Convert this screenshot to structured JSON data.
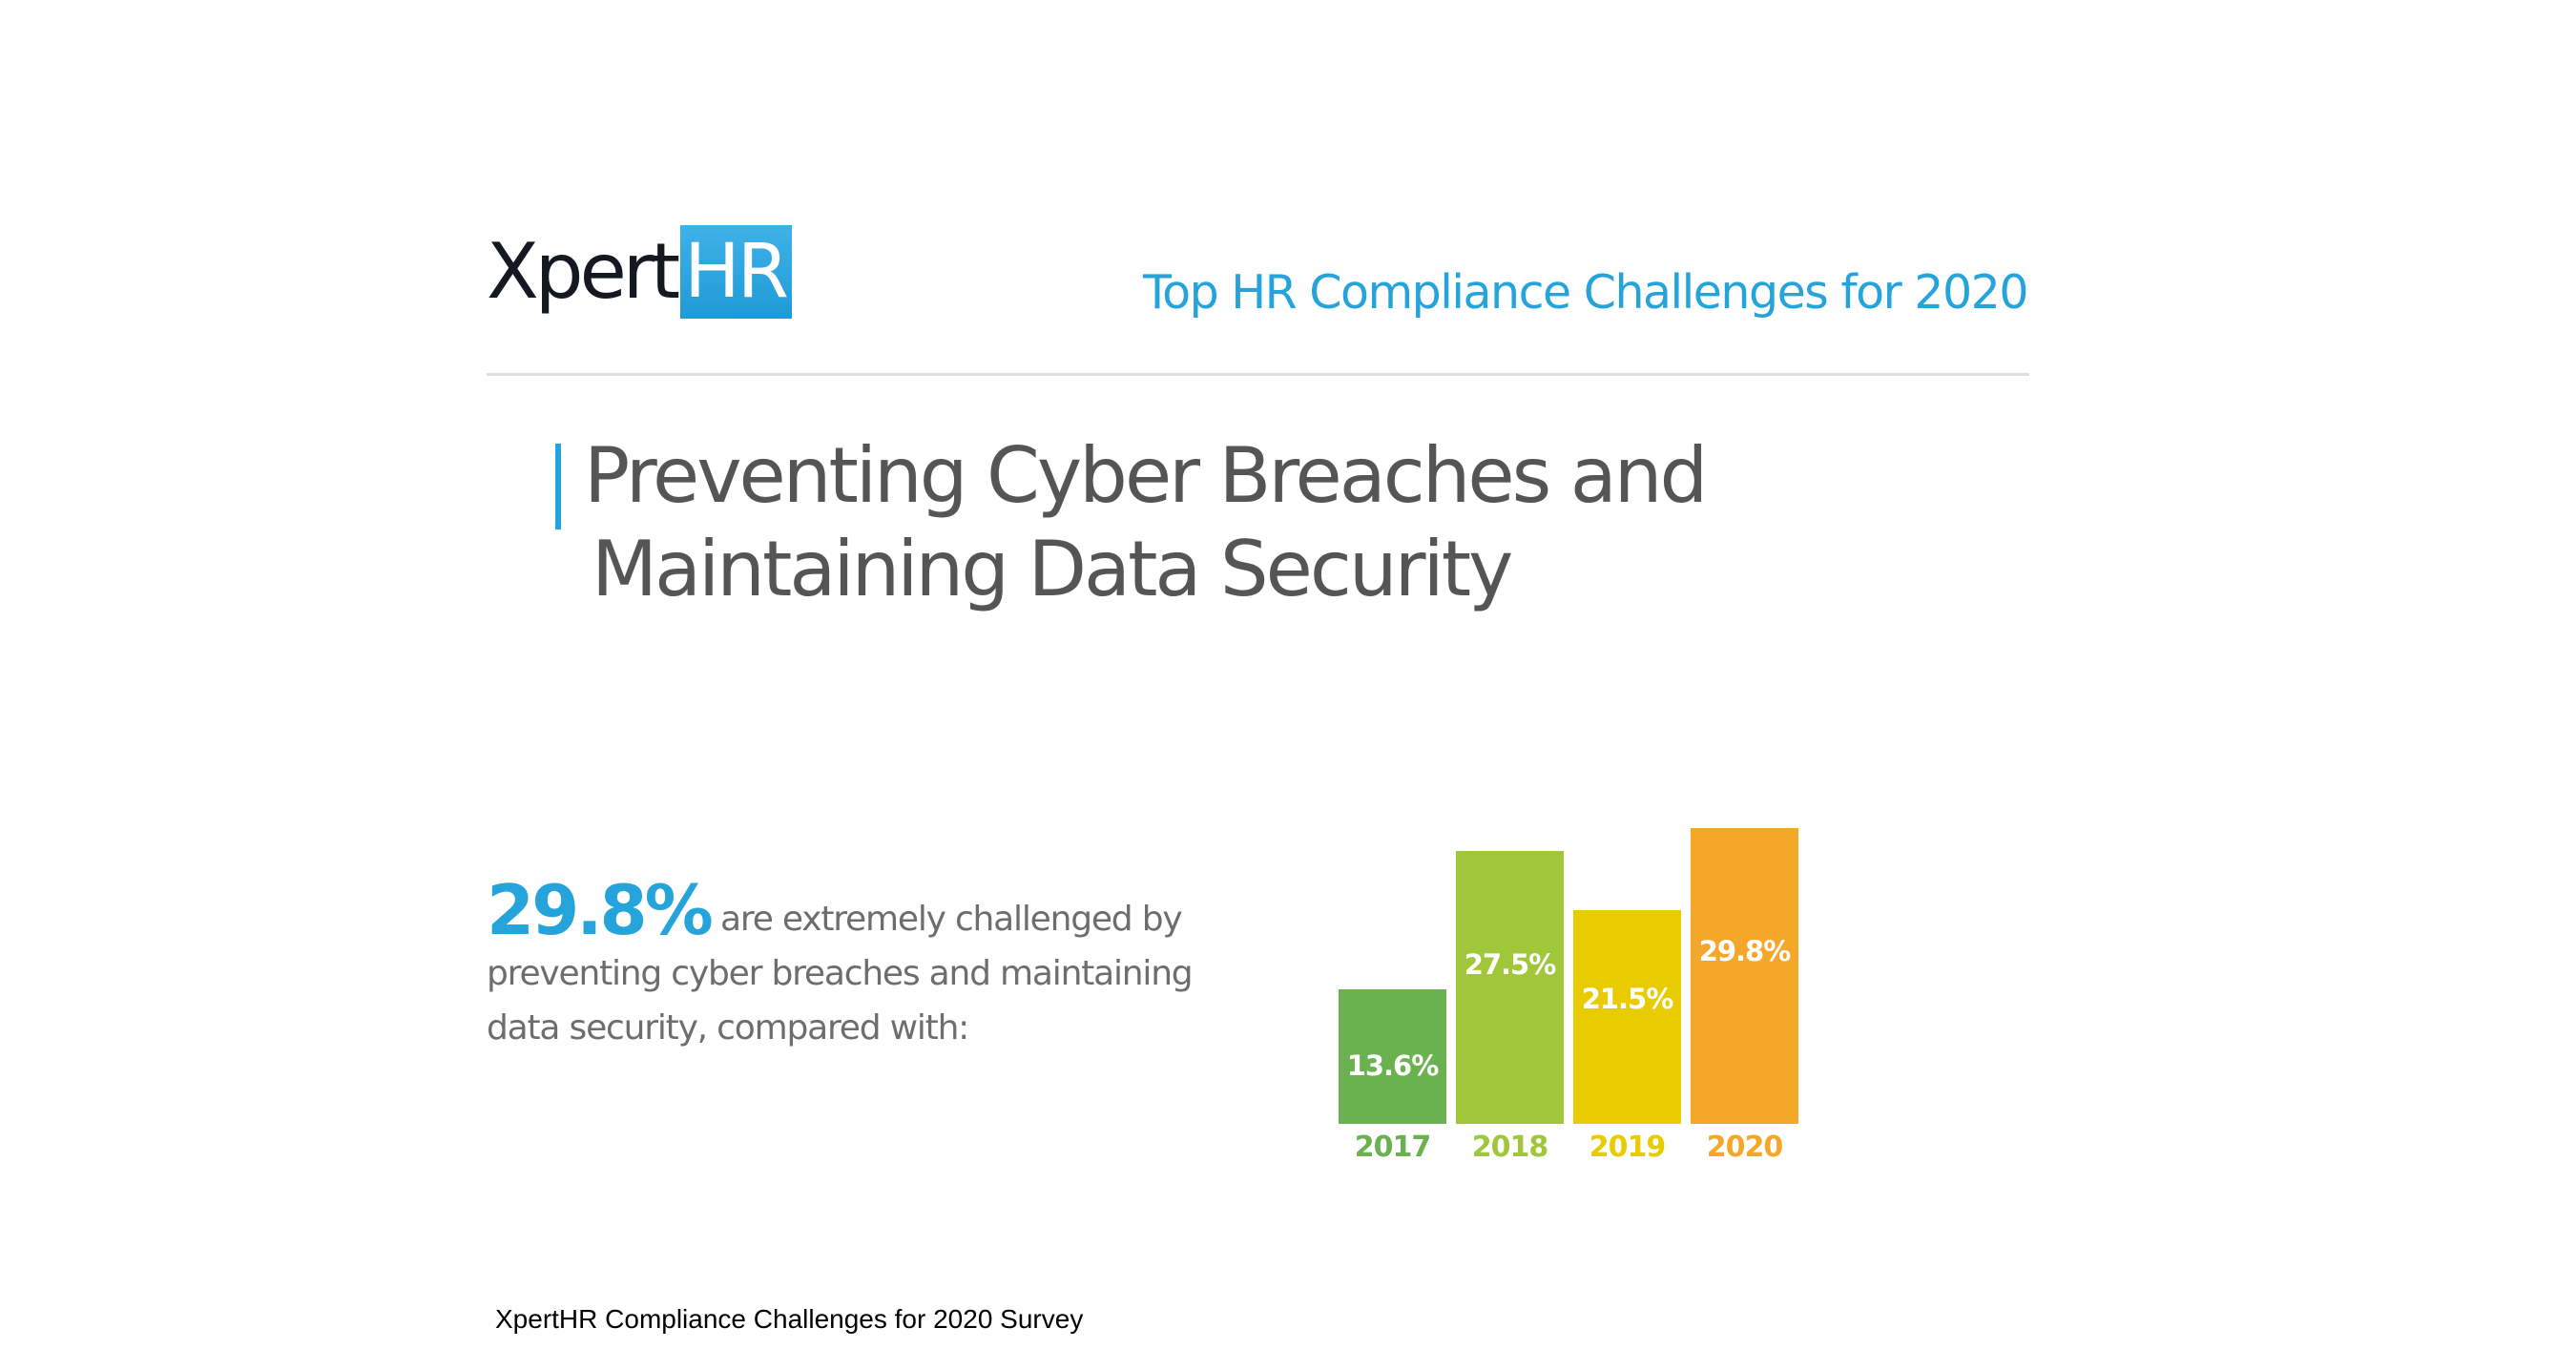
{
  "header": {
    "logo": {
      "part1": "Xpert",
      "part2": "HR"
    },
    "title": "Top HR Compliance Challenges for 2020"
  },
  "headline": {
    "line1": "Preventing Cyber Breaches and",
    "line2": "Maintaining Data Security"
  },
  "stat": {
    "value": "29.8%",
    "text": " are extremely challenged by preventing cyber breaches and maintaining data security, compared with:"
  },
  "source": "XpertHR Compliance Challenges for 2020 Survey",
  "colors": {
    "brand_blue": "#25a3db",
    "heading_gray": "#555555",
    "bar_2017": "#6ab150",
    "bar_2018": "#a0c63a",
    "bar_2019": "#e9cc00",
    "bar_2020": "#f5a72a"
  },
  "chart_data": {
    "type": "bar",
    "title": "",
    "categories": [
      "2017",
      "2018",
      "2019",
      "2020"
    ],
    "values": [
      13.6,
      27.5,
      21.5,
      29.8
    ],
    "labels": [
      "13.6%",
      "27.5%",
      "21.5%",
      "29.8%"
    ],
    "colors": [
      "#6ab150",
      "#a0c63a",
      "#e9cc00",
      "#f5a72a"
    ],
    "xlabel": "",
    "ylabel": "",
    "unit": "%",
    "grid": false,
    "legend": "none"
  }
}
